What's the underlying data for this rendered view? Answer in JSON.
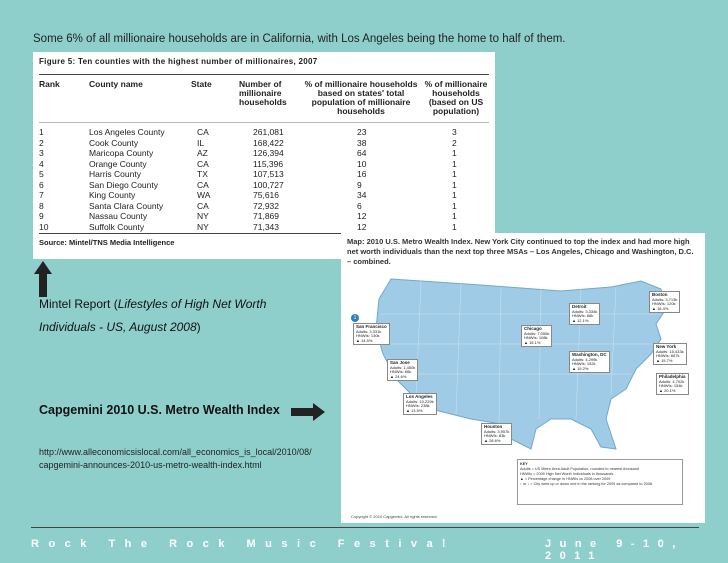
{
  "headline": "Some 6% of all millionaire households are in California, with Los Angeles being the home to half of them.",
  "table": {
    "title": "Figure 5: Ten counties with the highest number of millionaires, 2007",
    "columns": [
      "Rank",
      "County name",
      "State",
      "Number of millionaire households",
      "% of millionaire households based on states' total population of millionaire households",
      "% of millionaire households (based on US population)"
    ],
    "rows": [
      [
        "1",
        "Los Angeles County",
        "CA",
        "261,081",
        "23",
        "3"
      ],
      [
        "2",
        "Cook County",
        "IL",
        "168,422",
        "38",
        "2"
      ],
      [
        "3",
        "Maricopa County",
        "AZ",
        "126,394",
        "64",
        "1"
      ],
      [
        "4",
        "Orange County",
        "CA",
        "115,396",
        "10",
        "1"
      ],
      [
        "5",
        "Harris County",
        "TX",
        "107,513",
        "16",
        "1"
      ],
      [
        "6",
        "San Diego County",
        "CA",
        "100,727",
        "9",
        "1"
      ],
      [
        "7",
        "King County",
        "WA",
        "75,616",
        "34",
        "1"
      ],
      [
        "8",
        "Santa Clara County",
        "CA",
        "72,932",
        "6",
        "1"
      ],
      [
        "9",
        "Nassau County",
        "NY",
        "71,869",
        "12",
        "1"
      ],
      [
        "10",
        "Suffolk County",
        "NY",
        "71,343",
        "12",
        "1"
      ]
    ],
    "source": "Source: Mintel/TNS Media Intelligence"
  },
  "mintel_caption": {
    "prefix": "Mintel Report (",
    "italic": "Lifestyles of High Net Worth",
    "line2_italic": "Individuals - US, August 2008",
    "suffix": ")"
  },
  "capgemini_title": "Capgemini 2010 U.S. Metro Wealth Index",
  "url_line1": "http://www.alleconomicsislocal.com/all_economics_is_local/2010/08/",
  "url_line2": "capgemini-announces-2010-us-metro-wealth-index.html",
  "map": {
    "title": "Map: 2010 U.S. Metro Wealth Index. New York City continued to top the index and had more high net worth individuals than the next top three MSAs – Los Angeles, Chicago and Washington, D.C. – combined.",
    "callouts": [
      {
        "num": "1",
        "city": "San Francisco",
        "l1": "Adults: 3,331k",
        "l2": "HNWIs: 130k",
        "l3": "▲ 14.5%"
      },
      {
        "num": "",
        "city": "San Jose",
        "l1": "Adults: 1,450k",
        "l2": "HNWIs: 66k",
        "l3": "▲ 24.6%"
      },
      {
        "num": "",
        "city": "Los Angeles",
        "l1": "Adults: 10,229k",
        "l2": "HNWIs: 238k",
        "l3": "▲ 13.5%"
      },
      {
        "num": "",
        "city": "Houston",
        "l1": "Adults: 3,957k",
        "l2": "HNWIs: 83k",
        "l3": "▲ 28.6%"
      },
      {
        "num": "",
        "city": "Chicago",
        "l1": "Adults: 7,050k",
        "l2": "HNWIs: 108k",
        "l3": "▲ 15.1%"
      },
      {
        "num": "",
        "city": "Detroit",
        "l1": "Adults: 3,334k",
        "l2": "HNWIs: 66k",
        "l3": "▲ 12.1%"
      },
      {
        "num": "",
        "city": "Washington, DC",
        "l1": "Adults: 4,299k",
        "l2": "HNWIs: 152k",
        "l3": "▲ 19.2%"
      },
      {
        "num": "",
        "city": "Boston",
        "l1": "Adults: 3,713k",
        "l2": "HNWIs: 120k",
        "l3": "▲ 16.4%"
      },
      {
        "num": "",
        "city": "New York",
        "l1": "Adults: 15,433k",
        "l2": "HNWIs: 667k",
        "l3": "▲ 15.7%"
      },
      {
        "num": "",
        "city": "Philadelphia",
        "l1": "Adults: 4,702k",
        "l2": "HNWIs: 154k",
        "l3": "▲ 20.1%"
      }
    ],
    "key": {
      "title": "KEY",
      "l1": "Adults = US Metro Area Adult Population, rounded to nearest thousand",
      "l2": "HNWIs = 2009 High Net Worth Individuals in thousands",
      "l3": "▲ = Percentage change in HNWIs vs 2008 over 2009",
      "l4": "↑ or ↓ = City went up or down one in the ranking for 2009 as compared to 2008"
    },
    "copyright": "Copyright © 2010 Capgemini. All rights reserved."
  },
  "footer": {
    "left": "Rock The Rock Music Festival",
    "right": "June 9-10, 2011"
  },
  "colors": {
    "background": "#8ecfcc",
    "map_land": "#9fcbe6",
    "map_dot": "#2f7fb8"
  }
}
